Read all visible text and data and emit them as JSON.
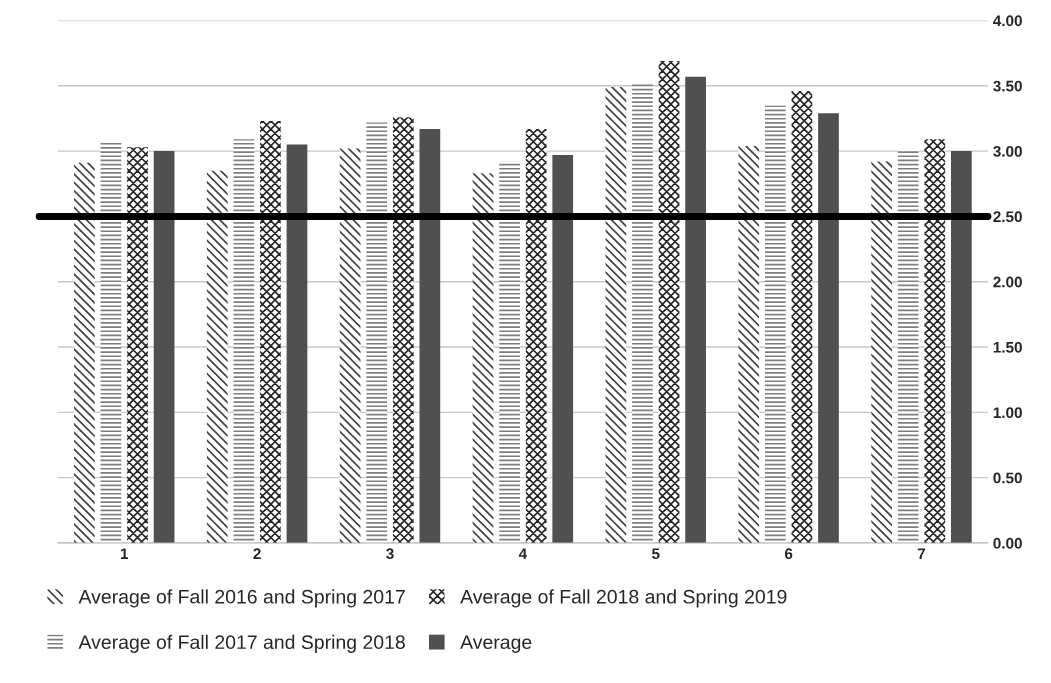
{
  "chart_data": {
    "type": "bar",
    "categories": [
      "1",
      "2",
      "3",
      "4",
      "5",
      "6",
      "7"
    ],
    "series": [
      {
        "name": "Average of Fall 2016 and Spring 2017",
        "color": "#404040",
        "values": [
          2.91,
          2.85,
          3.02,
          2.83,
          3.49,
          3.04,
          2.92
        ]
      },
      {
        "name": "Average of Fall 2017 and Spring 2018",
        "color": "#7f7f7f",
        "values": [
          3.07,
          3.09,
          3.22,
          2.92,
          3.52,
          3.35,
          3.01
        ]
      },
      {
        "name": "Average of Fall 2018 and Spring 2019",
        "color": "#262626",
        "values": [
          3.03,
          3.23,
          3.26,
          3.17,
          3.69,
          3.46,
          3.09
        ]
      },
      {
        "name": "Average",
        "color": "#505050",
        "values": [
          3.0,
          3.05,
          3.17,
          2.97,
          3.57,
          3.29,
          3.0
        ]
      }
    ],
    "ylim": [
      0,
      4
    ],
    "yticks": [
      {
        "value": 0,
        "label": "0.00"
      },
      {
        "value": 0.5,
        "label": "0.50"
      },
      {
        "value": 1,
        "label": "1.00"
      },
      {
        "value": 1.5,
        "label": "1.50"
      },
      {
        "value": 2,
        "label": "2.00"
      },
      {
        "value": 2.5,
        "label": "2.50"
      },
      {
        "value": 3,
        "label": "3.00"
      },
      {
        "value": 3.5,
        "label": "3.50"
      },
      {
        "value": 4,
        "label": "4.00"
      }
    ],
    "ref_lines": [
      {
        "axis": "y",
        "value": 2.5,
        "color": "#000000"
      }
    ],
    "grid": "y",
    "legend": "bottom"
  }
}
